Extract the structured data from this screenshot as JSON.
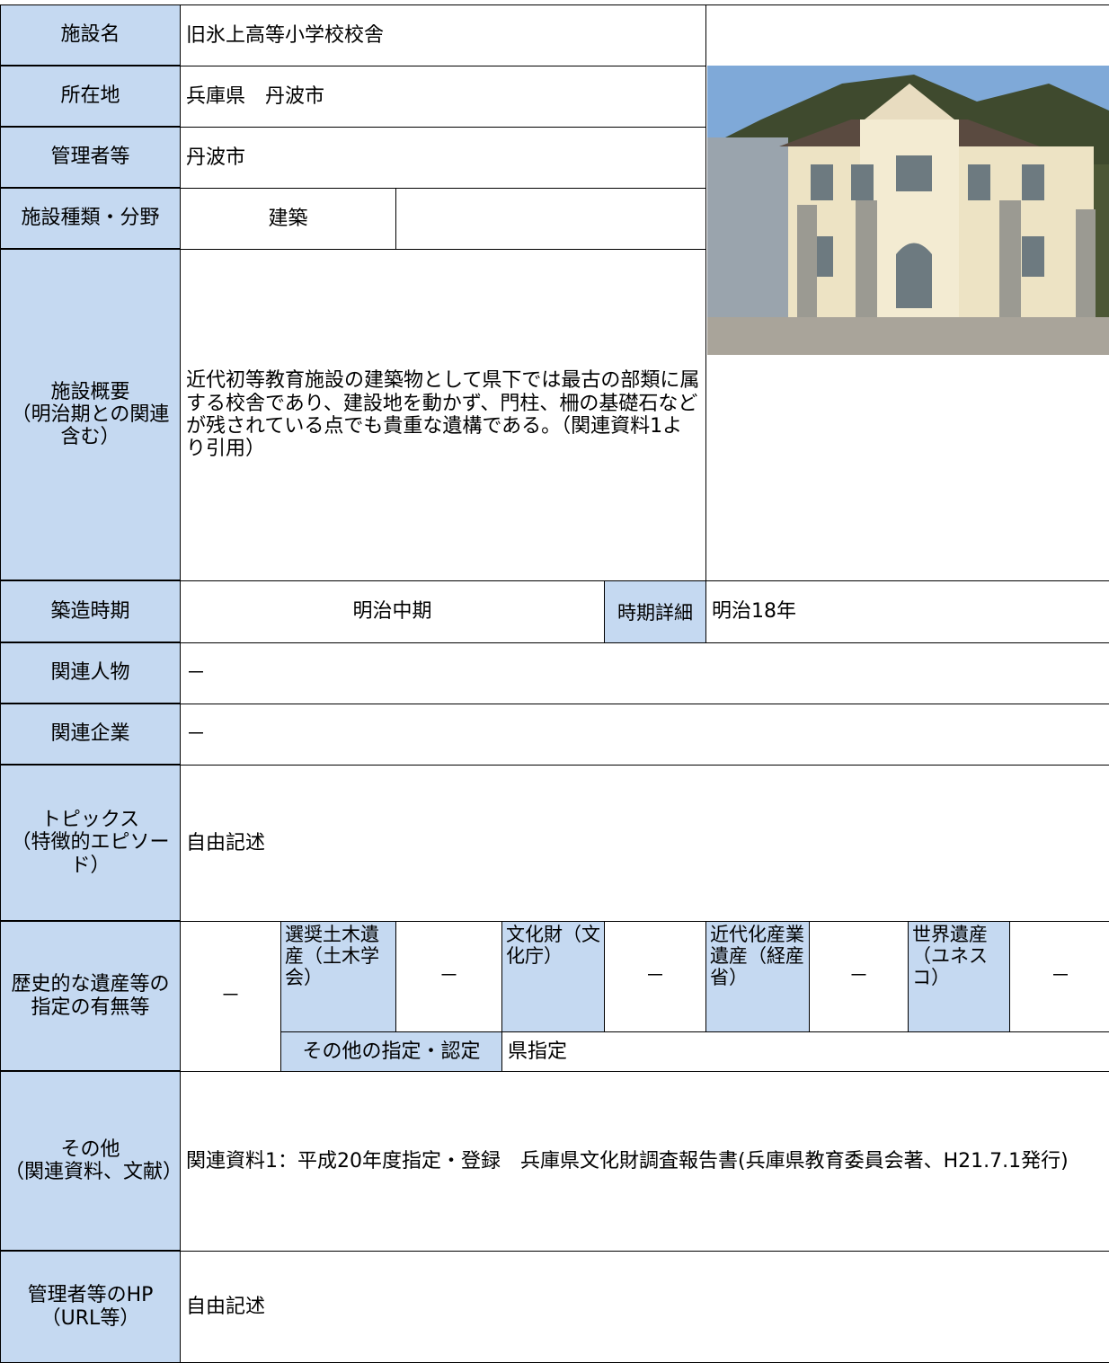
{
  "name": {
    "label": "施設名",
    "value": "旧氷上高等小学校校舎"
  },
  "location": {
    "label": "所在地",
    "value": "兵庫県　丹波市"
  },
  "manager": {
    "label": "管理者等",
    "value": "丹波市"
  },
  "category": {
    "label": "施設種類・分野",
    "value": "建築"
  },
  "overview": {
    "label": "施設概要\n（明治期との関連含む）",
    "value": "近代初等教育施設の建築物として県下では最古の部類に属する校舎であり、建設地を動かず、門柱、柵の基礎石などが残されている点でも貴重な遺構である。（関連資料1より引用）"
  },
  "period": {
    "label": "築造時期",
    "value": "明治中期",
    "detail_label": "時期詳細",
    "detail_value": "明治18年"
  },
  "person": {
    "label": "関連人物",
    "value": "－"
  },
  "company": {
    "label": "関連企業",
    "value": "－"
  },
  "topics": {
    "label": "トピックス\n（特徴的エピソード）",
    "value": "自由記述"
  },
  "designation": {
    "label": "歴史的な遺産等の指定の有無等",
    "value": "－",
    "items": [
      {
        "label": "選奨土木遺産（土木学会）",
        "value": "－"
      },
      {
        "label": "文化財（文化庁）",
        "value": "－"
      },
      {
        "label": "近代化産業遺産（経産省）",
        "value": "－"
      },
      {
        "label": "世界遺産（ユネスコ）",
        "value": "－"
      }
    ],
    "other_label": "その他の指定・認定",
    "other_value": "県指定"
  },
  "references": {
    "label": "その他\n（関連資料、文献）",
    "value": "関連資料1：平成20年度指定・登録　兵庫県文化財調査報告書(兵庫県教育委員会著、H21.7.1発行)"
  },
  "homepage": {
    "label": "管理者等のHP\n（URL等）",
    "value": "自由記述"
  }
}
